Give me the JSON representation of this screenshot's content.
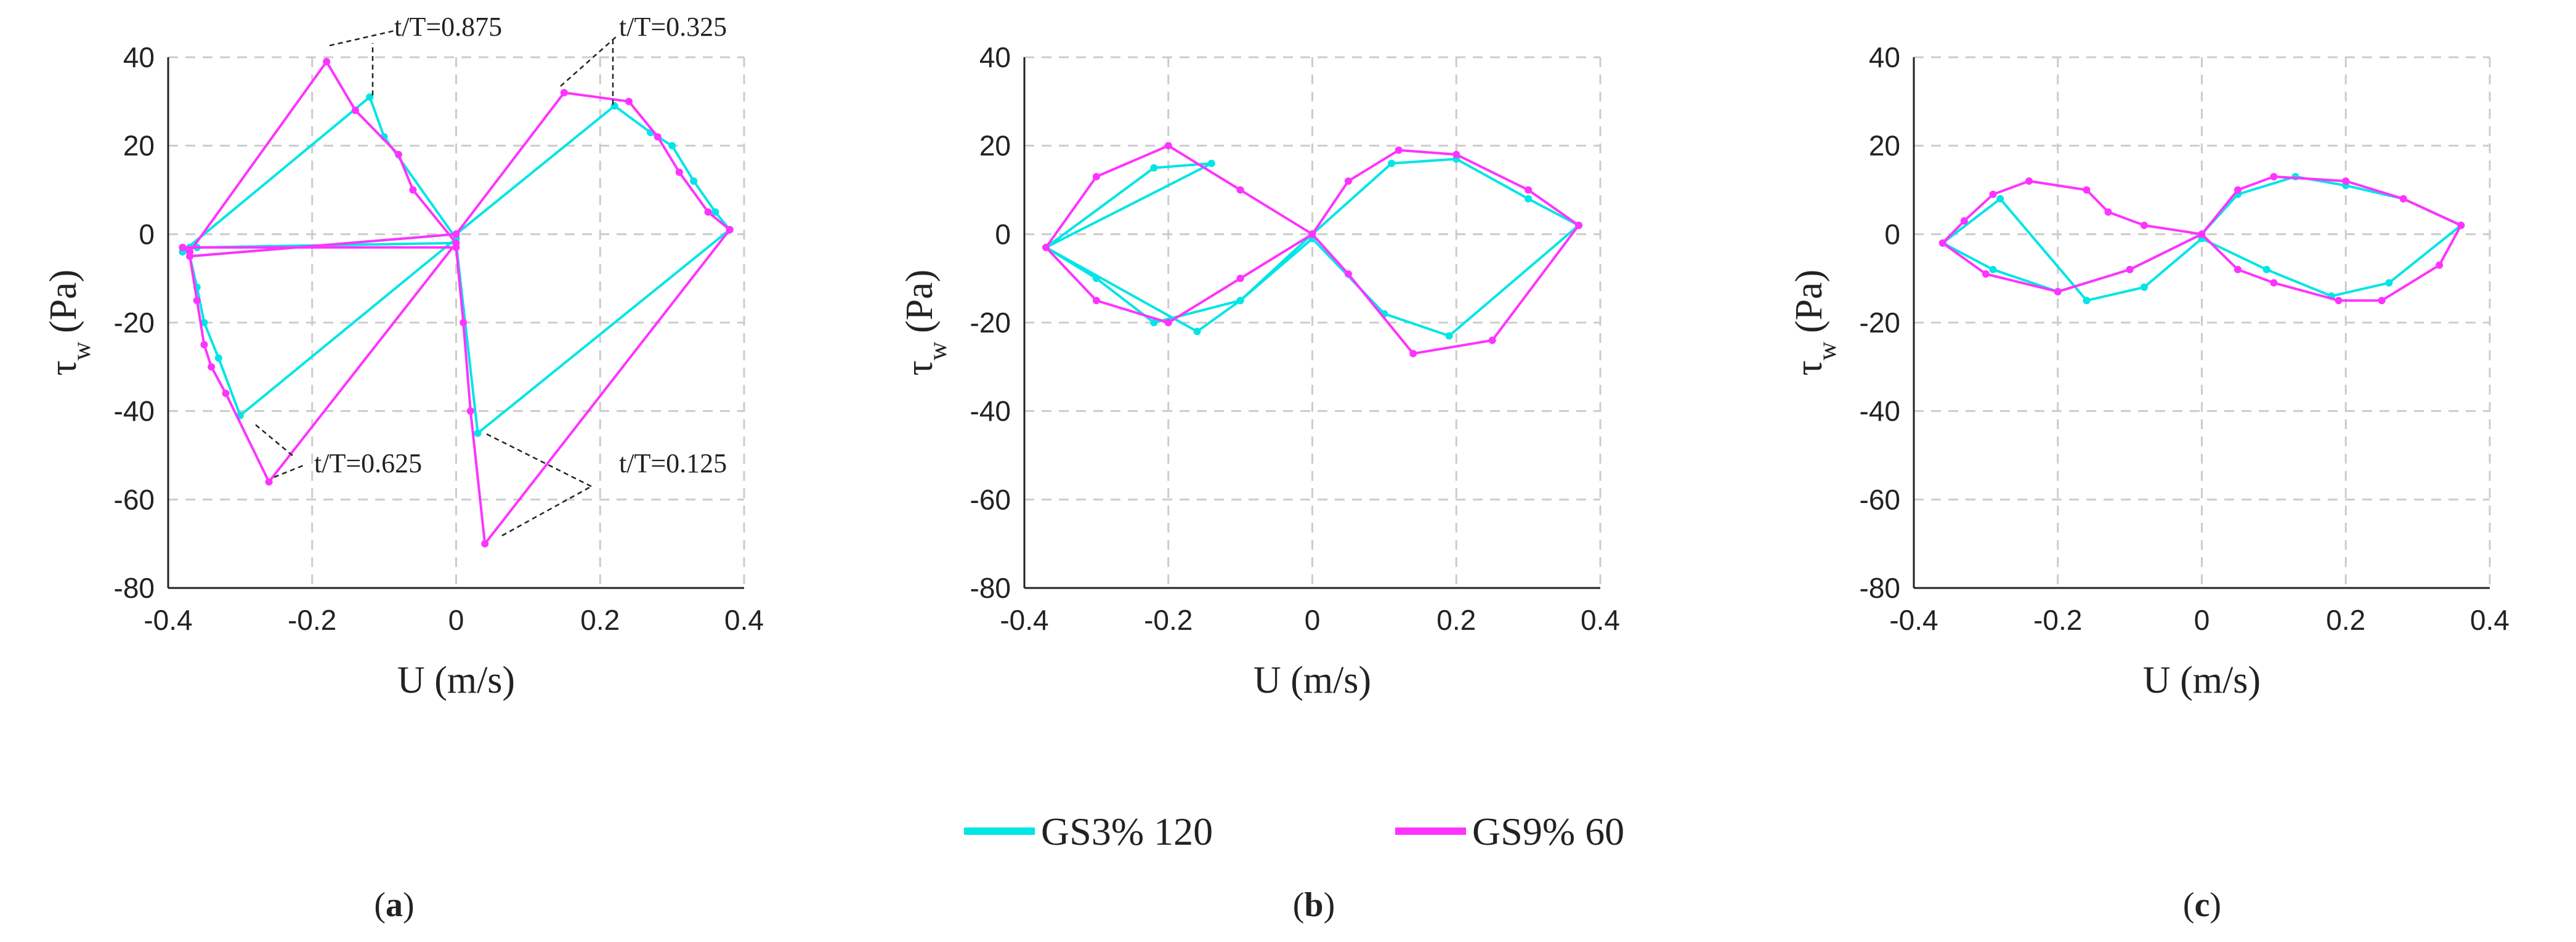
{
  "colors": {
    "series1": "#00E5E5",
    "series2": "#FF33FF",
    "grid": "#cccccc",
    "axis": "#222222"
  },
  "legend": [
    {
      "name": "GS3% 120",
      "color": "#00E5E5"
    },
    {
      "name": "GS9% 60",
      "color": "#FF33FF"
    }
  ],
  "chart_data": [
    {
      "type": "line",
      "panel_label": "a",
      "xlabel": "U (m/s)",
      "ylabel": "τ",
      "ylabel_sub": "w",
      "ylabel_unit": "(Pa)",
      "xlim": [
        -0.4,
        0.4
      ],
      "ylim": [
        -80,
        40
      ],
      "xticks": [
        "-0.4",
        "-0.2",
        "0",
        "0.2",
        "0.4"
      ],
      "yticks": [
        "40",
        "20",
        "0",
        "-20",
        "-40",
        "-60",
        "-80"
      ],
      "grid": true,
      "series": [
        {
          "name": "GS3% 120",
          "x": [
            0.38,
            0.36,
            0.33,
            0.3,
            0.27,
            0.22,
            0.0,
            -0.37,
            -0.36,
            -0.35,
            -0.33,
            -0.3,
            0.0,
            -0.1,
            -0.12,
            -0.38,
            -0.37,
            -0.36,
            0.0,
            0.03,
            0.38
          ],
          "y": [
            1,
            5,
            12,
            20,
            23,
            29,
            0,
            -5,
            -12,
            -20,
            -28,
            -41,
            -1,
            22,
            31,
            -4,
            -3,
            -3,
            -2,
            -45,
            1
          ]
        },
        {
          "name": "GS9% 60",
          "x": [
            0.38,
            0.35,
            0.31,
            0.28,
            0.24,
            0.15,
            0.0,
            -0.37,
            -0.36,
            -0.35,
            -0.34,
            -0.32,
            -0.26,
            0.0,
            -0.06,
            -0.08,
            -0.14,
            -0.18,
            -0.37,
            -0.38,
            0.0,
            0.01,
            0.02,
            0.04,
            0.38
          ],
          "y": [
            1,
            5,
            14,
            22,
            30,
            32,
            0,
            -5,
            -15,
            -25,
            -30,
            -36,
            -56,
            -2,
            10,
            18,
            28,
            39,
            -4,
            -3,
            -3,
            -20,
            -40,
            -70,
            1
          ]
        }
      ],
      "annotations": [
        {
          "text": "t/T=0.875"
        },
        {
          "text": "t/T=0.325"
        },
        {
          "text": "t/T=0.625"
        },
        {
          "text": "t/T=0.125"
        }
      ]
    },
    {
      "type": "line",
      "panel_label": "b",
      "xlabel": "U (m/s)",
      "ylabel": "τ",
      "ylabel_sub": "w",
      "ylabel_unit": "(Pa)",
      "xlim": [
        -0.4,
        0.4
      ],
      "ylim": [
        -80,
        40
      ],
      "xticks": [
        "-0.4",
        "-0.2",
        "0",
        "0.2",
        "0.4"
      ],
      "yticks": [
        "40",
        "20",
        "0",
        "-20",
        "-40",
        "-60",
        "-80"
      ],
      "grid": true,
      "series": [
        {
          "name": "GS3% 120",
          "x": [
            0.37,
            0.3,
            0.2,
            0.11,
            0.0,
            -0.1,
            -0.22,
            -0.3,
            -0.37,
            -0.22,
            -0.14,
            -0.37,
            -0.16,
            -0.1,
            0.0,
            0.1,
            0.19,
            0.37
          ],
          "y": [
            2,
            8,
            17,
            16,
            0,
            -15,
            -20,
            -10,
            -3,
            15,
            16,
            -3,
            -22,
            -15,
            -1,
            -18,
            -23,
            2
          ]
        },
        {
          "name": "GS9% 60",
          "x": [
            0.37,
            0.3,
            0.2,
            0.12,
            0.05,
            0.0,
            -0.1,
            -0.2,
            -0.3,
            -0.37,
            -0.3,
            -0.2,
            -0.1,
            0.0,
            0.05,
            0.14,
            0.25,
            0.37
          ],
          "y": [
            2,
            10,
            18,
            19,
            12,
            0,
            -10,
            -20,
            -15,
            -3,
            13,
            20,
            10,
            0,
            -9,
            -27,
            -24,
            2
          ]
        }
      ]
    },
    {
      "type": "line",
      "panel_label": "c",
      "xlabel": "U (m/s)",
      "ylabel": "τ",
      "ylabel_sub": "w",
      "ylabel_unit": "(Pa)",
      "xlim": [
        -0.4,
        0.4
      ],
      "ylim": [
        -80,
        40
      ],
      "xticks": [
        "-0.4",
        "-0.2",
        "0",
        "0.2",
        "0.4"
      ],
      "yticks": [
        "40",
        "20",
        "0",
        "-20",
        "-40",
        "-60",
        "-80"
      ],
      "grid": true,
      "series": [
        {
          "name": "GS3% 120",
          "x": [
            0.36,
            0.28,
            0.2,
            0.13,
            0.05,
            0.0,
            -0.1,
            -0.2,
            -0.29,
            -0.36,
            -0.28,
            -0.16,
            -0.08,
            0.0,
            0.09,
            0.18,
            0.26,
            0.36
          ],
          "y": [
            2,
            8,
            11,
            13,
            9,
            0,
            -8,
            -13,
            -8,
            -2,
            8,
            -15,
            -12,
            -1,
            -8,
            -14,
            -11,
            2
          ]
        },
        {
          "name": "GS9% 60",
          "x": [
            0.36,
            0.28,
            0.2,
            0.1,
            0.05,
            0.0,
            -0.1,
            -0.2,
            -0.3,
            -0.36,
            -0.33,
            -0.29,
            -0.24,
            -0.16,
            -0.13,
            -0.08,
            0.0,
            0.05,
            0.1,
            0.19,
            0.25,
            0.33,
            0.36
          ],
          "y": [
            2,
            8,
            12,
            13,
            10,
            0,
            -8,
            -13,
            -9,
            -2,
            3,
            9,
            12,
            10,
            5,
            2,
            0,
            -8,
            -11,
            -15,
            -15,
            -7,
            2
          ]
        }
      ]
    }
  ]
}
